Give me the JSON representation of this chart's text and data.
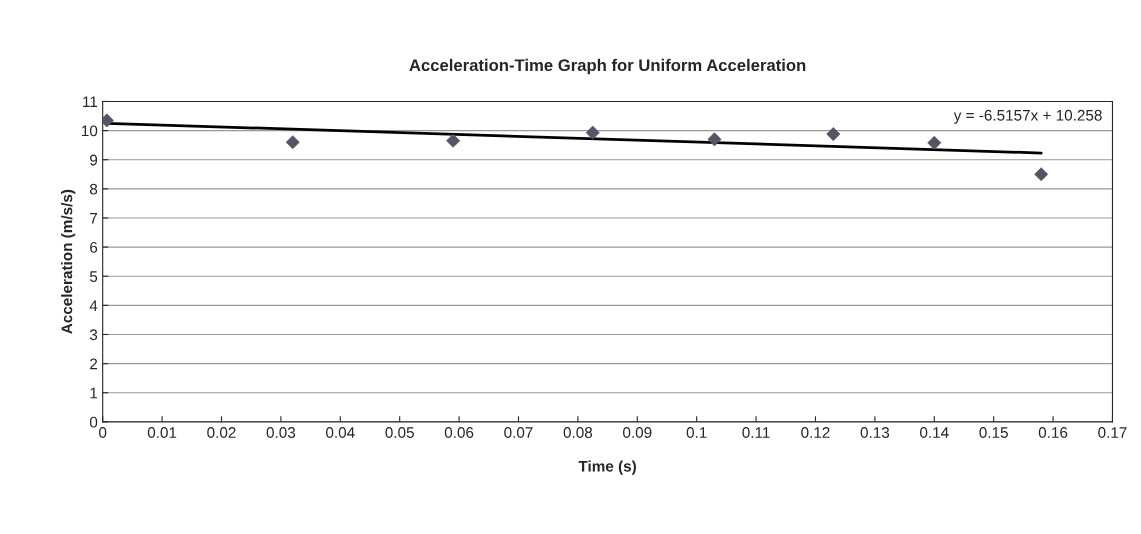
{
  "chart_data": {
    "type": "scatter",
    "title": "Acceleration-Time Graph for Uniform Acceleration",
    "xlabel": "Time (s)",
    "ylabel": "Acceleration (m/s/s)",
    "x": [
      0.0007,
      0.032,
      0.059,
      0.0825,
      0.103,
      0.123,
      0.14,
      0.158
    ],
    "series": [
      {
        "color": "#555566",
        "marker": "diamond",
        "values": [
          10.35,
          9.6,
          9.65,
          9.93,
          9.7,
          9.88,
          9.58,
          8.5
        ]
      },
      {
        "type": "line",
        "color": "#000000",
        "marker": "none",
        "line_style": "solid",
        "x": [
          0.0007,
          0.158
        ],
        "values": [
          10.25,
          9.23
        ]
      }
    ],
    "annotations": [
      "y = -6.5157x + 10.258"
    ],
    "xlim": [
      0,
      0.17
    ],
    "xticks": [
      0,
      0.01,
      0.02,
      0.03,
      0.04,
      0.05,
      0.06,
      0.07,
      0.08,
      0.09,
      0.1,
      0.11,
      0.12,
      0.13,
      0.14,
      0.15,
      0.16,
      0.17
    ],
    "ylim": [
      0,
      11
    ],
    "yticks": [
      0,
      1,
      2,
      3,
      4,
      5,
      6,
      7,
      8,
      9,
      10,
      11
    ],
    "grid": "y",
    "legend": false
  }
}
